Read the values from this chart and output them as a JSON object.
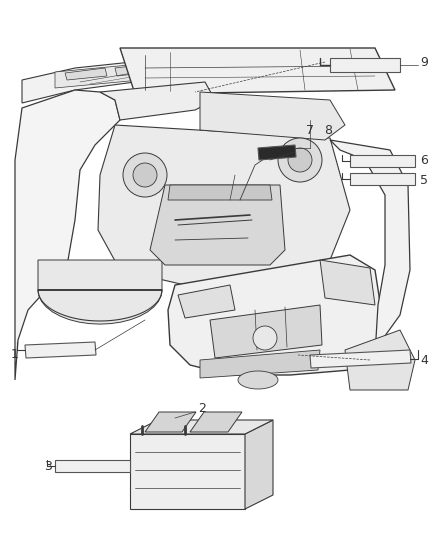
{
  "background_color": "#ffffff",
  "fig_width": 4.38,
  "fig_height": 5.33,
  "dpi": 100,
  "line_color": "#4a4a4a",
  "label_color": "#333333",
  "font_size": 8.5,
  "car_body_color": "#f7f7f7",
  "car_edge_color": "#3a3a3a",
  "sticker_fill": "#f0f0f0",
  "sticker_edge": "#555555",
  "dark_sticker_fill": "#2a2a2a",
  "battery_face_color": "#eeeeee",
  "battery_side_color": "#d8d8d8",
  "battery_top_color": "#e8e8e8"
}
